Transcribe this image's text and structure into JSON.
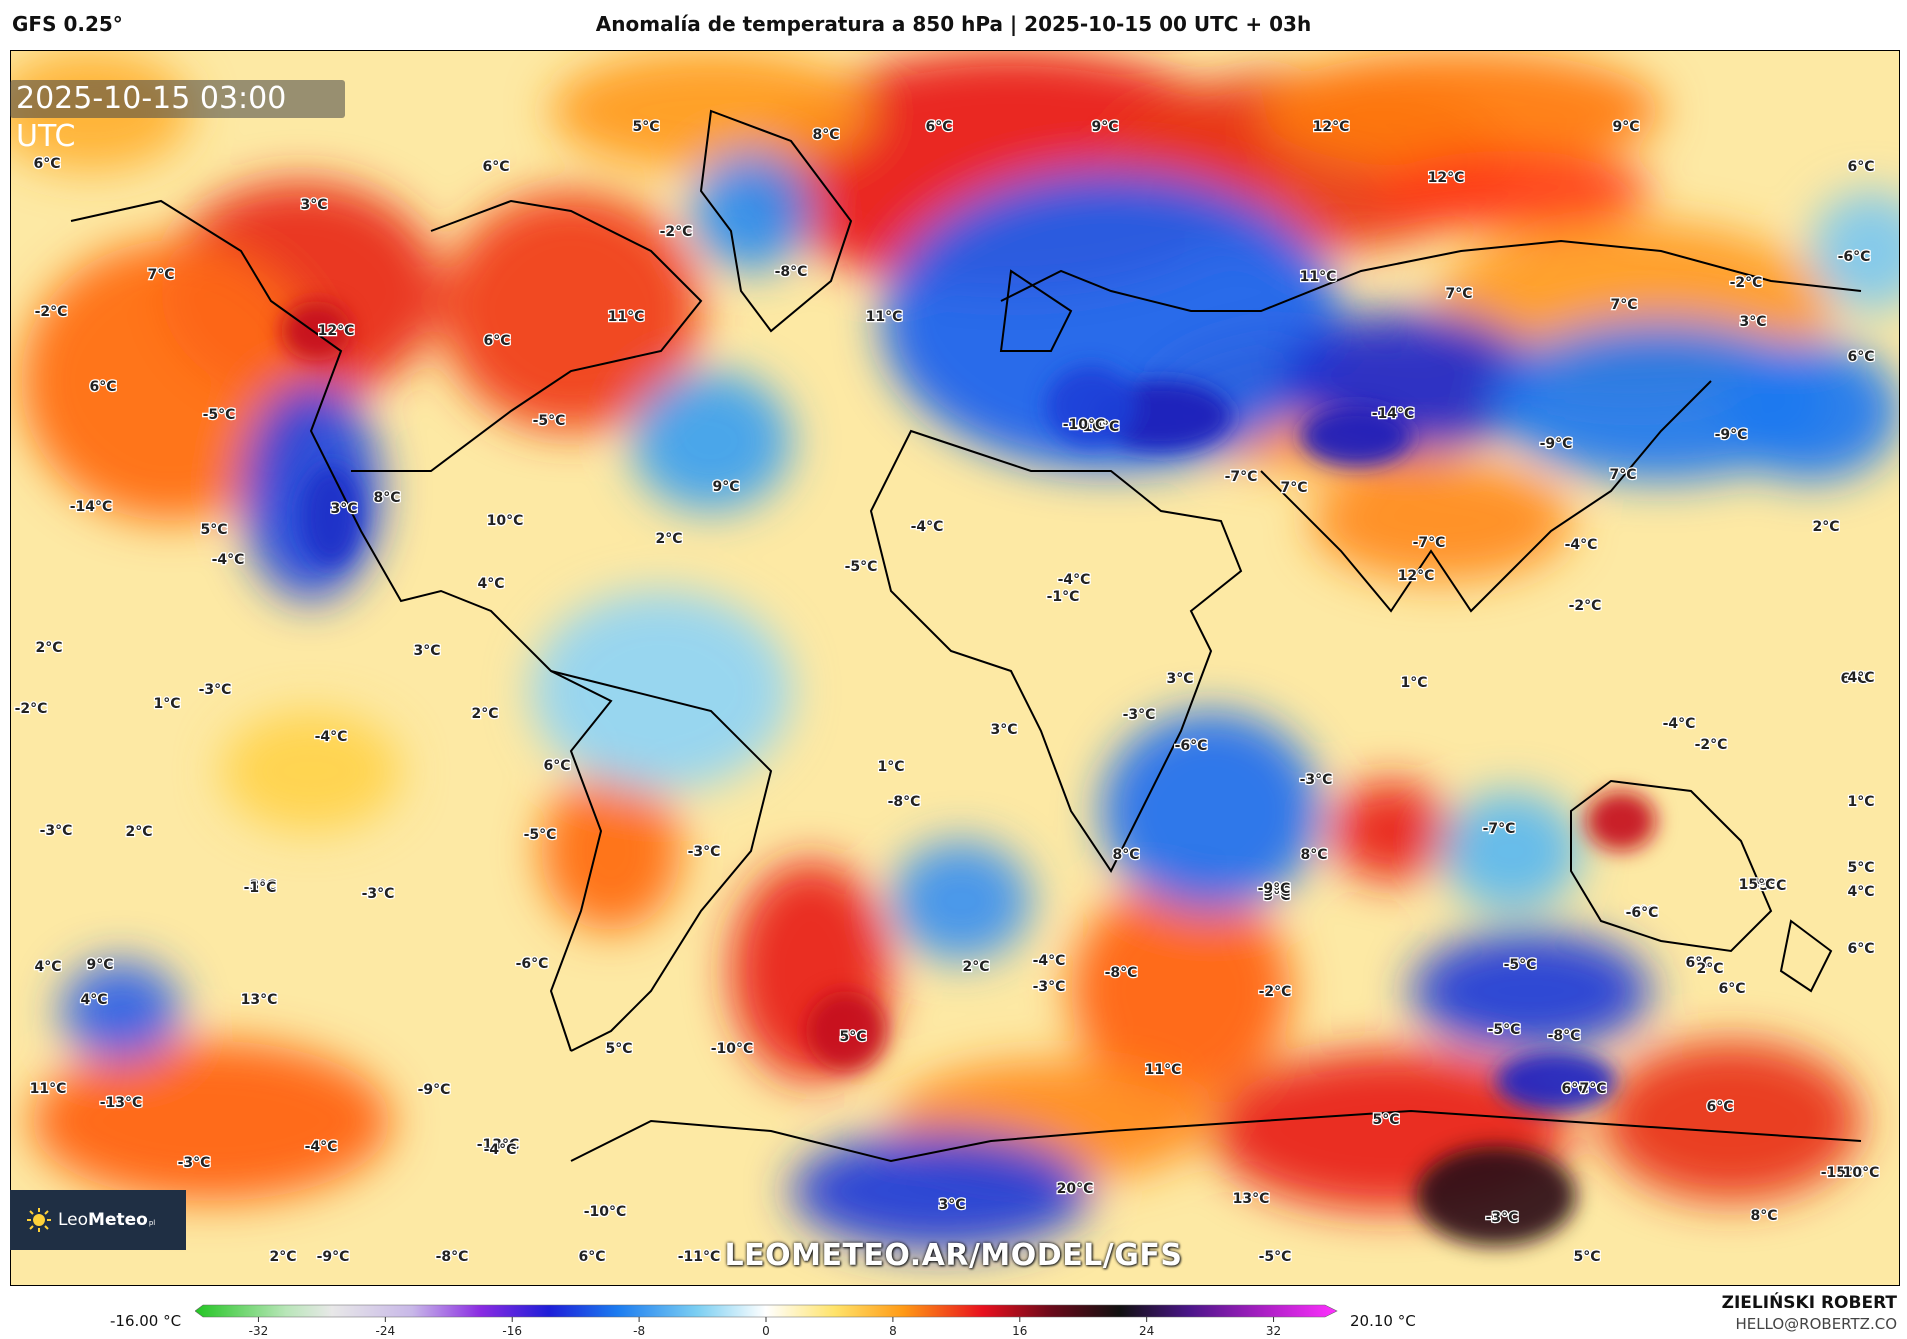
{
  "header": {
    "model": "GFS 0.25°",
    "title": "Anomalía de temperatura a 850 hPa | 2025-10-15 00 UTC + 03h"
  },
  "map": {
    "timestamp": "2025-10-15 03:00 UTC",
    "watermark": "LEOMETEO.AR/MODEL/GFS",
    "logo": {
      "name_part1": "Leo",
      "name_part2": "Meteo",
      "suffix": "pl",
      "icon": "sun-icon"
    },
    "labels": [
      "5°C",
      "8°C",
      "6°C",
      "9°C",
      "12°C",
      "9°C",
      "6°C",
      "6°C",
      "6°C",
      "3°C",
      "-2°C",
      "-8°C",
      "12°C",
      "7°C",
      "-2°C",
      "12°C",
      "11°C",
      "11°C",
      "11°C",
      "7°C",
      "7°C",
      "-6°C",
      "-2°C",
      "3°C",
      "6°C",
      "6°C",
      "-5°C",
      "-10°C",
      "-14°C",
      "-9°C",
      "-9°C",
      "-10°C",
      "7°C",
      "2°C",
      "6°C",
      "-5°C",
      "-7°C",
      "9°C",
      "-14°C",
      "3°C",
      "8°C",
      "10°C",
      "7°C",
      "-4°C",
      "5°C",
      "2°C",
      "-4°C",
      "-5°C",
      "4°C",
      "-4°C",
      "-1°C",
      "-4°C",
      "-7°C",
      "12°C",
      "-2°C",
      "3°C",
      "6°C",
      "2°C",
      "1°C",
      "3°C",
      "1°C",
      "-2°C",
      "-3°C",
      "2°C",
      "-4°C",
      "-6°C",
      "-3°C",
      "3°C",
      "-4°C",
      "-2°C",
      "4°C",
      "6°C",
      "1°C",
      "-3°C",
      "1°C",
      "-3°C",
      "2°C",
      "-5°C",
      "-8°C",
      "-7°C",
      "8°C",
      "8°C",
      "-3°C",
      "3°C",
      "-5°C",
      "3°C",
      "-1°C",
      "-3°C",
      "3°C",
      "-9°C",
      "-6°C",
      "15°C",
      "5°C",
      "4°C",
      "-6°C",
      "6°C",
      "4°C",
      "9°C",
      "-5°C",
      "6°C",
      "2°C",
      "-6°C",
      "-4°C",
      "-8°C",
      "6°C",
      "13°C",
      "4°C",
      "-3°C",
      "-2°C",
      "5°C",
      "-8°C",
      "2°C",
      "5°C",
      "-10°C",
      "-5°C",
      "11°C",
      "-13°C",
      "-9°C",
      "11°C",
      "6°C",
      "6°C",
      "5°C",
      "-3°C",
      "-13°C",
      "-4°C",
      "-15°C",
      "7°C",
      "3°C",
      "20°C",
      "13°C",
      "-3°C",
      "8°C",
      "10°C",
      "-4°C",
      "-10°C",
      "2°C",
      "-9°C",
      "-8°C",
      "6°C",
      "-11°C",
      "-5°C",
      "5°C"
    ]
  },
  "colorbar": {
    "min_label": "-16.00 °C",
    "max_label": "20.10 °C",
    "ticks": [
      "-32",
      "-24",
      "-16",
      "-8",
      "0",
      "8",
      "16",
      "24",
      "32"
    ]
  },
  "credit": {
    "name": "ZIELIŃSKI ROBERT",
    "email": "HELLO@ROBERTZ.CO"
  }
}
